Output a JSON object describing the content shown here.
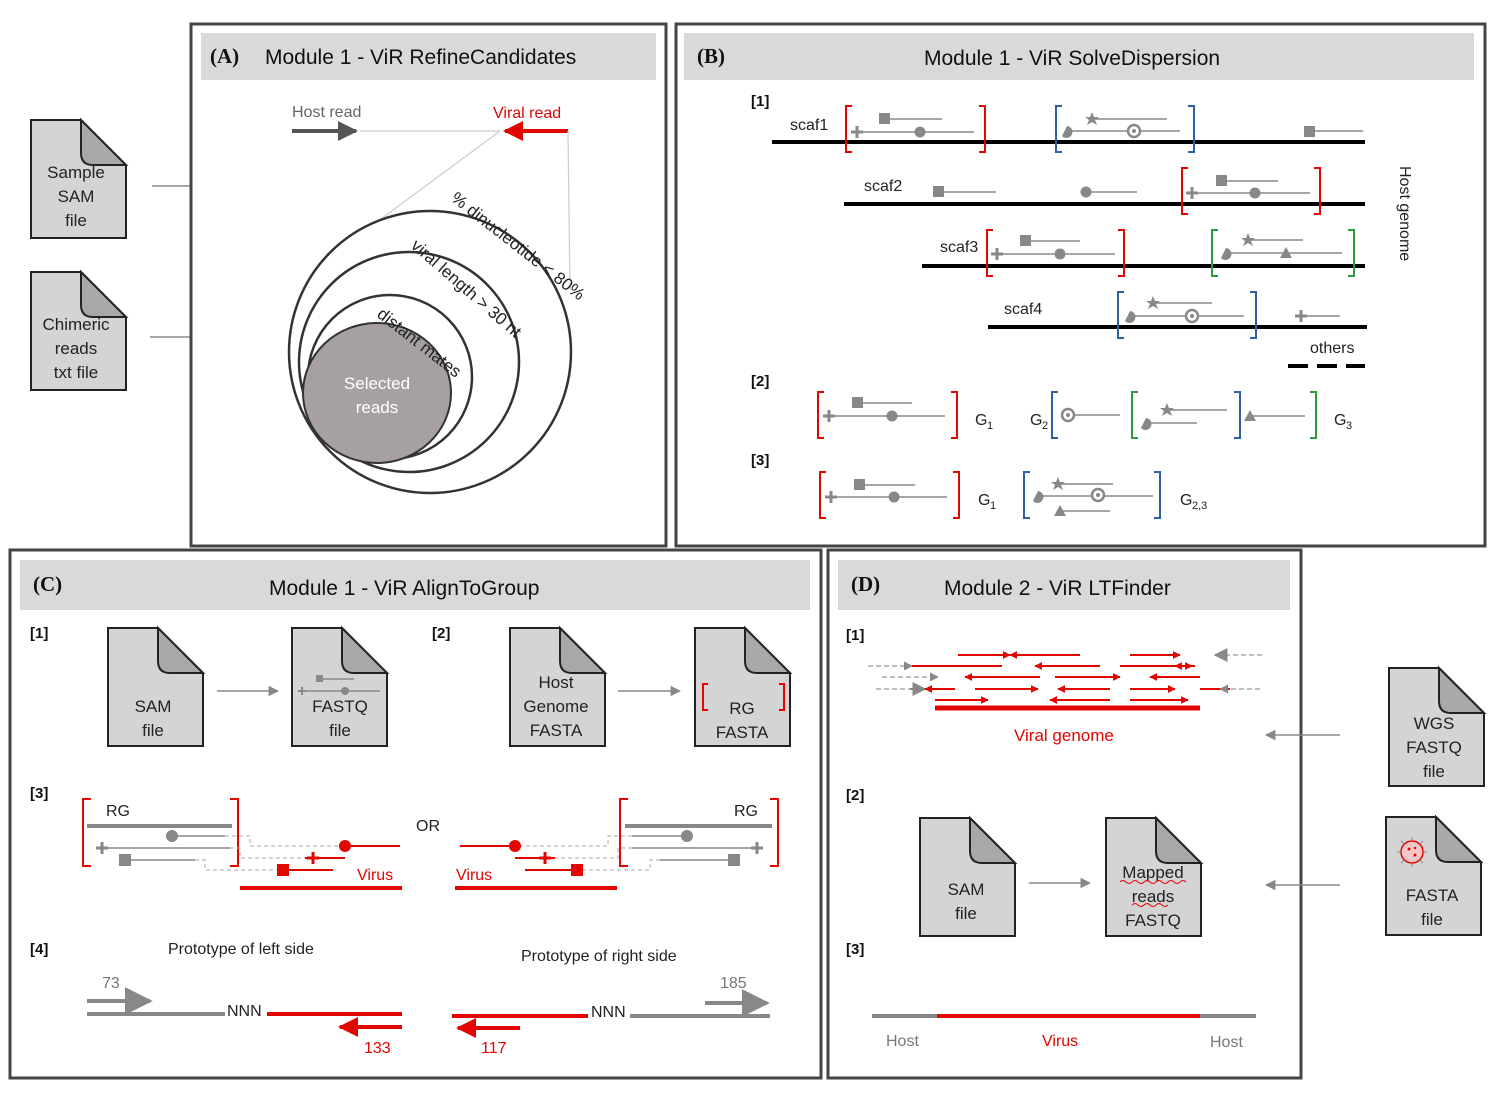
{
  "inputs_left": {
    "sample_sam": [
      "Sample",
      "SAM",
      "file"
    ],
    "chimeric": [
      "Chimeric",
      "reads",
      "txt file"
    ]
  },
  "panel_a": {
    "tag": "(A)",
    "title": "Module 1 - ViR RefineCandidates",
    "host_read": "Host read",
    "viral_read": "Viral read",
    "ring1": "% dinucleotide < 80%",
    "ring2": "viral length > 30 nt",
    "ring3": "distant mates",
    "core": [
      "Selected",
      "reads"
    ]
  },
  "panel_b": {
    "tag": "(B)",
    "title": "Module 1 - ViR SolveDispersion",
    "step1": "[1]",
    "step2": "[2]",
    "step3": "[3]",
    "scaffolds": [
      "scaf1",
      "scaf2",
      "scaf3",
      "scaf4"
    ],
    "others": "others",
    "host_genome": "Host genome",
    "g1": "G",
    "g1_sub": "1",
    "g2": "G",
    "g2_sub": "2",
    "g3": "G",
    "g3_sub": "3",
    "g23": "G",
    "g23_sub": "2,3"
  },
  "panel_c": {
    "tag": "(C)",
    "title": "Module 1 - ViR AlignToGroup",
    "step1": "[1]",
    "step2": "[2]",
    "step3": "[3]",
    "step4": "[4]",
    "sam_file": [
      "SAM",
      "file"
    ],
    "fastq_file": [
      "FASTQ",
      "file"
    ],
    "host_fasta": [
      "Host",
      "Genome",
      "FASTA"
    ],
    "rg_fasta": [
      "RG",
      "FASTA"
    ],
    "rg": "RG",
    "or": "OR",
    "virus": "Virus",
    "proto_left": "Prototype of left side",
    "proto_right": "Prototype of right side",
    "nnn": "NNN",
    "n73": "73",
    "n133": "133",
    "n185": "185",
    "n117": "117"
  },
  "panel_d": {
    "tag": "(D)",
    "title": "Module 2 - ViR LTFinder",
    "step1": "[1]",
    "step2": "[2]",
    "step3": "[3]",
    "viral_genome": "Viral genome",
    "sam_file": [
      "SAM",
      "file"
    ],
    "mapped": [
      "Mapped",
      "reads",
      "FASTQ"
    ],
    "host": "Host",
    "virus": "Virus"
  },
  "inputs_right": {
    "wgs": [
      "WGS",
      "FASTQ",
      "file"
    ],
    "fasta": [
      "FASTA",
      "file"
    ]
  },
  "colors": {
    "red": "#e10600",
    "grey": "#777777",
    "blue": "#2f5fa8",
    "green": "#2e9a3e",
    "panel_header": "#d9d9d9"
  }
}
